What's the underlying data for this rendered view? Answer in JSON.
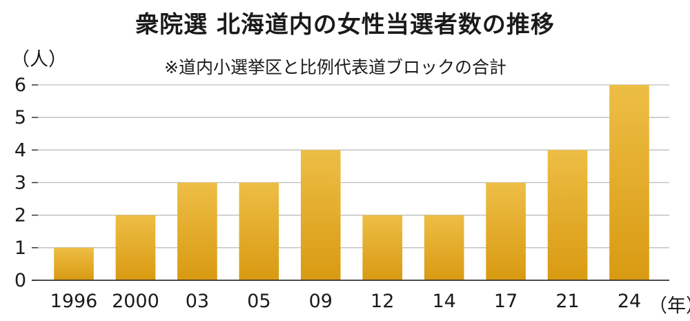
{
  "chart_data": {
    "type": "bar",
    "title": "衆院選 北海道内の女性当選者数の推移",
    "subtitle": "※道内小選挙区と比例代表道ブロックの合計",
    "ylabel": "（人）",
    "xlabel": "（年）",
    "categories": [
      "1996",
      "2000",
      "03",
      "05",
      "09",
      "12",
      "14",
      "17",
      "21",
      "24"
    ],
    "values": [
      1,
      2,
      3,
      3,
      4,
      2,
      2,
      3,
      4,
      6
    ],
    "ylim": [
      0,
      6
    ],
    "yticks": [
      "0",
      "1",
      "2",
      "3",
      "4",
      "5",
      "6"
    ],
    "grid": true,
    "colors": {
      "bar_top": "#EDBE45",
      "bar_bottom": "#D99A12",
      "grid": "#bdbdbd",
      "axis": "#333333"
    }
  }
}
